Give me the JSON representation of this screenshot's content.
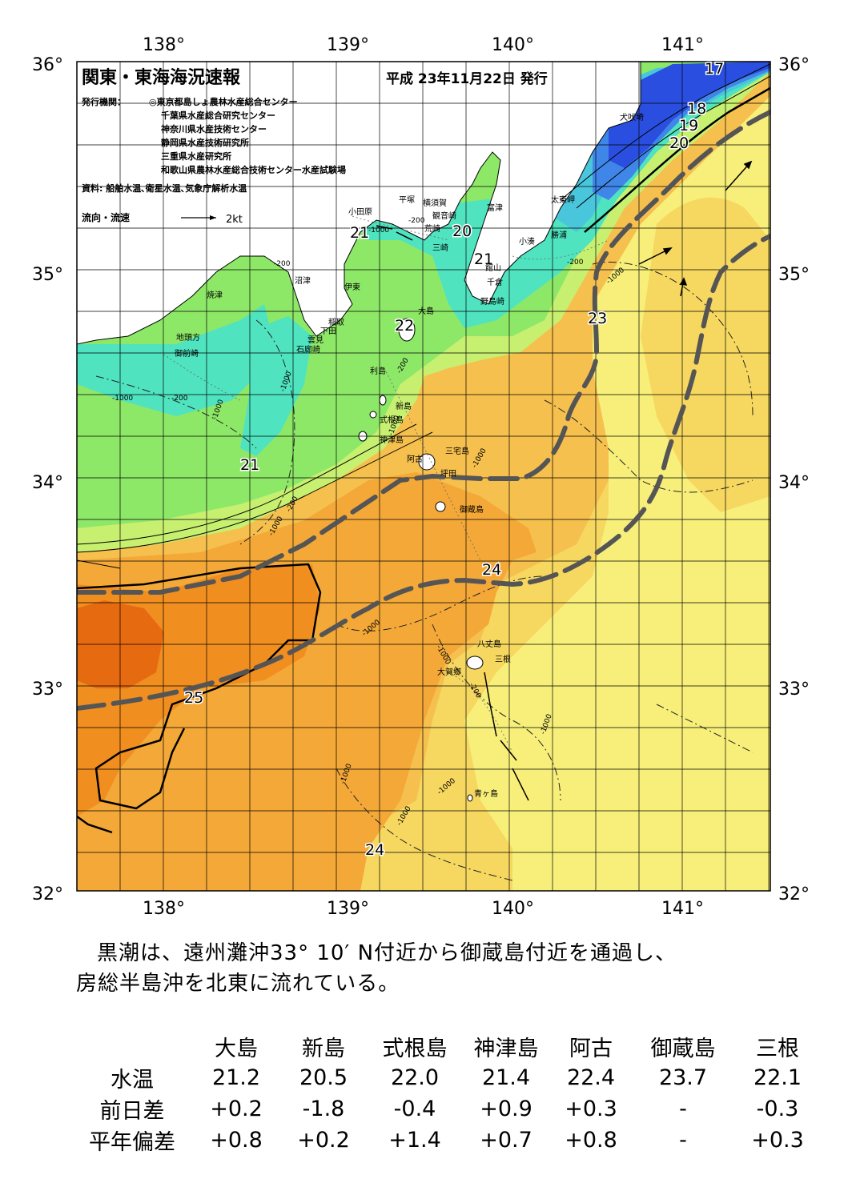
{
  "header": {
    "title": "関東・東海海況速報",
    "date": "平成 23年11月22日 発行",
    "publisher_label": "発行機関：",
    "publishers": [
      "◎東京都島しょ農林水産総合センター",
      "千葉県水産総合研究センター",
      "神奈川県水産技術センター",
      "静岡県水産技術研究所",
      "三重県水産研究所",
      "和歌山県農林水産総合技術センター水産試験場"
    ],
    "source": "資料: 船舶水温､衛星水温､気象庁解析水温",
    "legend_label": "流向・流速",
    "legend_speed": "2kt"
  },
  "axes": {
    "lon_labels": [
      "138°",
      "139°",
      "140°",
      "141°"
    ],
    "lat_labels": [
      "36°",
      "35°",
      "34°",
      "33°",
      "32°"
    ]
  },
  "colors": {
    "t17": "#2a4fe0",
    "t18": "#3f86e8",
    "t19": "#49c6dc",
    "t20": "#4fe3c0",
    "t21": "#8ee868",
    "t22": "#c8f070",
    "t23": "#f7ef7a",
    "t235": "#f6d760",
    "t24": "#f6c04e",
    "t245": "#f4a838",
    "t25": "#f08e20",
    "t26": "#e66a10",
    "land": "#ffffff",
    "kuroshio": "#555555"
  },
  "isotherm_labels": [
    "17",
    "18",
    "19",
    "20",
    "20",
    "21",
    "21",
    "21",
    "22",
    "23",
    "24",
    "24",
    "25"
  ],
  "depth_labels": [
    "-1000",
    "-200",
    "-1000",
    "-200",
    "-1000",
    "-1000",
    "-200",
    "-1000",
    "-200",
    "-1000",
    "-1000",
    "-200",
    "-1000",
    "-200",
    "-1000",
    "-1000",
    "-1000",
    "-200",
    "-1000",
    "-1000",
    "-1000"
  ],
  "place_names": [
    "犬吠埼",
    "太東岬",
    "勝浦",
    "小湊",
    "富津",
    "横須賀",
    "観音崎",
    "平塚",
    "荒崎",
    "三崎",
    "小田原",
    "館山",
    "千倉",
    "野島崎",
    "沼津",
    "伊東",
    "焼津",
    "稲取",
    "下田",
    "雲見",
    "石廊崎",
    "地頭方",
    "御前崎",
    "大島",
    "利島",
    "新島",
    "式根島",
    "神津島",
    "三宅島",
    "阿古",
    "坪田",
    "御蔵島",
    "八丈島",
    "三根",
    "大賀郷",
    "青ヶ島"
  ],
  "summary": {
    "line1": "黒潮は、遠州灘沖33° 10′ N付近から御蔵島付近を通過し、",
    "line2": "房総半島沖を北東に流れている。"
  },
  "table": {
    "columns": [
      "大島",
      "新島",
      "式根島",
      "神津島",
      "阿古",
      "御蔵島",
      "三根"
    ],
    "rows": [
      {
        "label": "水温",
        "values": [
          "21.2",
          "20.5",
          "22.0",
          "21.4",
          "22.4",
          "23.7",
          "22.1"
        ]
      },
      {
        "label": "前日差",
        "values": [
          "+0.2",
          "-1.8",
          "-0.4",
          "+0.9",
          "+0.3",
          "-",
          "-0.3"
        ]
      },
      {
        "label": "平年偏差",
        "values": [
          "+0.8",
          "+0.2",
          "+1.4",
          "+0.7",
          "+0.8",
          "-",
          "+0.3"
        ]
      }
    ]
  }
}
